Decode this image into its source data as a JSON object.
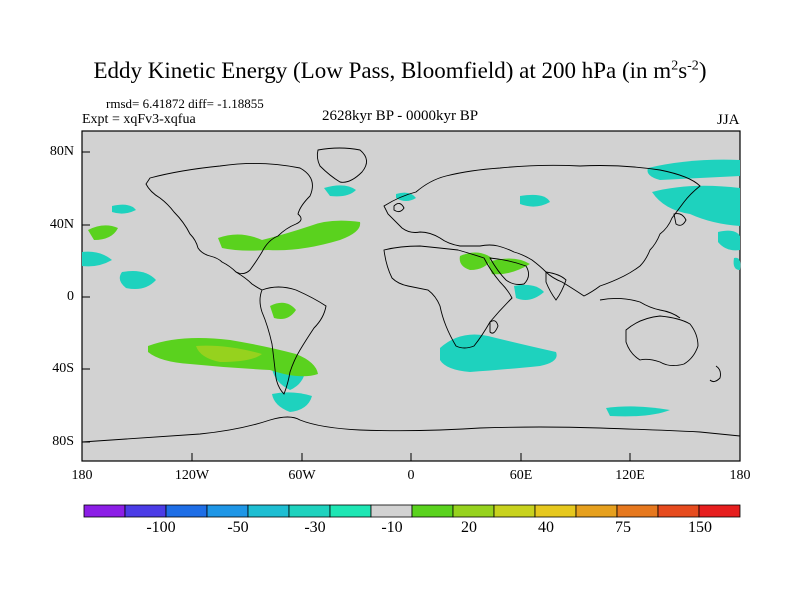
{
  "title": {
    "main": "Eddy Kinetic Energy (Low Pass, Bloomfield) at 200 hPa (in m",
    "sup1": "2",
    "mid": "s",
    "sup2": "-2",
    "end": ")"
  },
  "stats": "rmsd= 6.41872  diff= -1.18855",
  "expt": "Expt = xqFv3-xqfua",
  "period": "2628kyr BP - 0000kyr BP",
  "season": "JJA",
  "lat_ticks": [
    "80N",
    "40N",
    "0",
    "40S",
    "80S"
  ],
  "lon_ticks": [
    "180",
    "120W",
    "60W",
    "0",
    "60E",
    "120E",
    "180"
  ],
  "colorbar": {
    "colors": [
      "#8c1ee6",
      "#4b3ce6",
      "#1e6ee6",
      "#1e96e6",
      "#1ebed2",
      "#1ed2be",
      "#1ee6b4",
      "#d2d2d2",
      "#5ad21e",
      "#96d21e",
      "#c8d21e",
      "#e6c81e",
      "#e6a01e",
      "#e6781e",
      "#e64b1e",
      "#e61e1e"
    ],
    "labels": [
      "-100",
      "-50",
      "-30",
      "-10",
      "20",
      "40",
      "75",
      "150"
    ]
  },
  "colors": {
    "ocean_land_bg": "#d2d2d2",
    "positive": "#5ad21e",
    "positive_strong": "#96d21e",
    "negative": "#1ed2be"
  }
}
